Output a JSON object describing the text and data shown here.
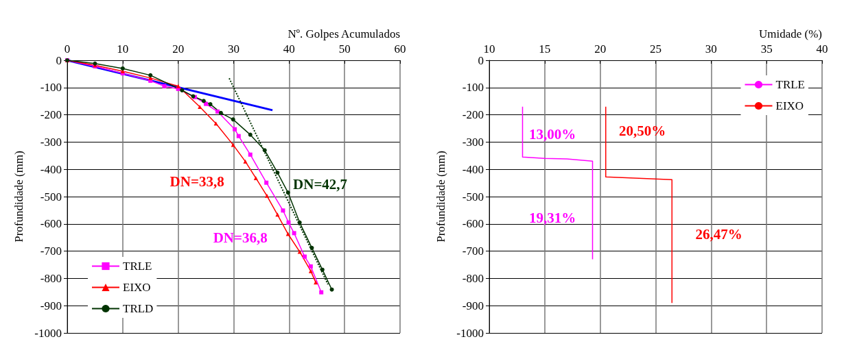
{
  "chart_data": [
    {
      "type": "line",
      "xlabel": "Nº. Golpes Acumulados",
      "ylabel": "Profundidade (mm)",
      "xlim": [
        0,
        60
      ],
      "xticks": [
        0,
        10,
        20,
        30,
        40,
        50,
        60
      ],
      "ylim": [
        -1000,
        0
      ],
      "yticks": [
        -1000,
        -900,
        -800,
        -700,
        -600,
        -500,
        -400,
        -300,
        -200,
        -100,
        0
      ],
      "grid": true,
      "legend": "bottom left",
      "line_style": "solid",
      "series": [
        {
          "name": "TRLE",
          "color": "#ff00ff",
          "marker": "square",
          "x": [
            0,
            5,
            10,
            15,
            17.5,
            20,
            23,
            25,
            27.1,
            30.2,
            30.9,
            33,
            35.9,
            38.9,
            39.9,
            40.9,
            42.8,
            43.9,
            45.8
          ],
          "values": [
            0,
            -22,
            -48,
            -75,
            -95,
            -105,
            -135,
            -160,
            -188,
            -253,
            -278,
            -346,
            -449,
            -551,
            -595,
            -634,
            -720,
            -756,
            -851
          ]
        },
        {
          "name": "EIXO",
          "color": "#ff0000",
          "marker": "triangle",
          "x": [
            0,
            5,
            10,
            15,
            20,
            23.9,
            26.8,
            29.9,
            32.1,
            34,
            36,
            37.9,
            39.8,
            41.9,
            43.9,
            44.8
          ],
          "values": [
            0,
            -18,
            -40,
            -65,
            -95,
            -171,
            -232,
            -310,
            -371,
            -432,
            -497,
            -566,
            -637,
            -702,
            -773,
            -815
          ]
        },
        {
          "name": "TRLD",
          "color": "#003300",
          "marker": "circle",
          "x": [
            0,
            5,
            10,
            15,
            20.7,
            22.7,
            24.6,
            25.8,
            27.7,
            29.9,
            33,
            35.6,
            37.9,
            39.8,
            41.9,
            44.1,
            46,
            47.7
          ],
          "values": [
            0,
            -12,
            -30,
            -55,
            -110,
            -132,
            -149,
            -161,
            -193,
            -217,
            -273,
            -330,
            -412,
            -485,
            -595,
            -688,
            -768,
            -841
          ]
        },
        {
          "color": "#0000ff",
          "marker": "none",
          "x": [
            0,
            37
          ],
          "values": [
            0,
            -183
          ]
        },
        {
          "color": "#003300",
          "line_style": "dotted",
          "x": [
            29.2,
            47
          ],
          "values": [
            -66,
            -822
          ]
        }
      ],
      "annotations": [
        "DN=33,8",
        "DN=42,7",
        "DN=36,8"
      ]
    },
    {
      "type": "line",
      "xlabel": "Umidade (%)",
      "ylabel": "Profundidade (mm)",
      "xlim": [
        10,
        40
      ],
      "xticks": [
        10,
        15,
        20,
        25,
        30,
        35,
        40
      ],
      "ylim": [
        -1000,
        0
      ],
      "yticks": [
        -1000,
        -900,
        -800,
        -700,
        -600,
        -500,
        -400,
        -300,
        -200,
        -100,
        0
      ],
      "grid": true,
      "legend": "top right",
      "marker": "none",
      "line_style": "solid",
      "series": [
        {
          "name": "TRLE",
          "color": "#ff00ff",
          "x": [
            13,
            13,
            15,
            17,
            19.31,
            19.31
          ],
          "values": [
            -170,
            -355,
            -360,
            -362,
            -370,
            -730
          ]
        },
        {
          "name": "EIXO",
          "color": "#ff0000",
          "x": [
            20.5,
            20.5,
            26.47,
            26.47
          ],
          "values": [
            -170,
            -428,
            -438,
            -890
          ]
        }
      ],
      "annotations": [
        "13,00%",
        "20,50%",
        "19,31%",
        "26,47%"
      ]
    }
  ]
}
